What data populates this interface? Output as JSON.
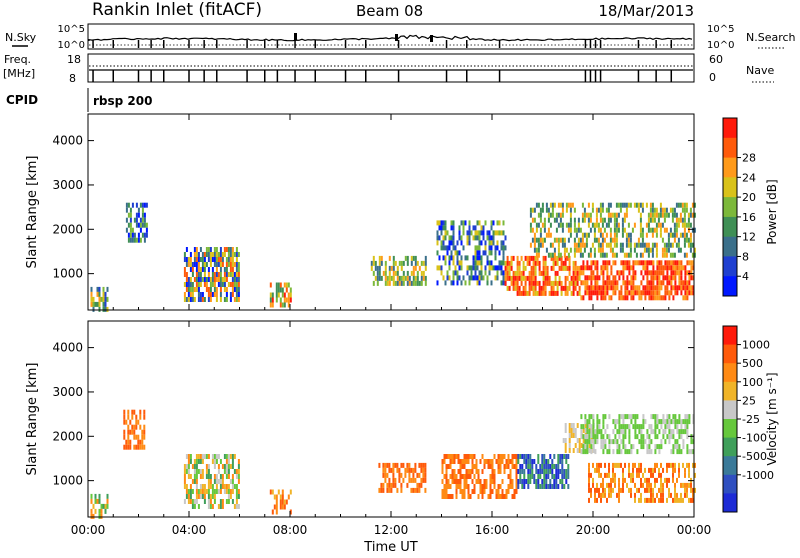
{
  "header": {
    "station": "Rankin Inlet (fitACF)",
    "beam": "Beam 08",
    "date": "18/Mar/2013"
  },
  "top_panels": {
    "nsky_label": "N.Sky",
    "nsky_ticks": [
      "10^5",
      "10^0"
    ],
    "nsearch_label": "N.Search",
    "nsearch_ticks": [
      "10^5",
      "10^0"
    ],
    "freq_label_1": "Freq.",
    "freq_label_2": "[MHz]",
    "freq_ticks": [
      "18",
      "8"
    ],
    "nave_label": "Nave",
    "nave_ticks": [
      "60",
      "0"
    ],
    "cpid_label": "CPID",
    "cpid_value": "rbsp 200"
  },
  "colors": {
    "power": [
      "#0018ff",
      "#1f3fd0",
      "#3a6f8a",
      "#3f8f55",
      "#7cb83a",
      "#d9c21a",
      "#ff9a1a",
      "#ff5a0a",
      "#ff1a0a"
    ],
    "velocity": [
      "#1d2bd6",
      "#2f4fc0",
      "#3a7a99",
      "#3f9f5a",
      "#66c83c",
      "#c8c8c8",
      "#f0b428",
      "#ff8a14",
      "#ff5a0a",
      "#ff1a0a"
    ]
  },
  "chart_data": [
    {
      "type": "heatmap",
      "name": "power",
      "ylabel": "Slant Range [km]",
      "xlabel": "",
      "xlim": [
        0,
        24
      ],
      "ylim": [
        180,
        4600
      ],
      "x_ticks": [
        "00:00",
        "04:00",
        "08:00",
        "12:00",
        "16:00",
        "20:00",
        "00:00"
      ],
      "y_ticks": [
        "1000",
        "2000",
        "3000",
        "4000"
      ],
      "colorbar": {
        "label": "Power [dB]",
        "ticks": [
          "4",
          "8",
          "12",
          "16",
          "20",
          "24",
          "28"
        ]
      },
      "blobs": [
        {
          "t0": 0.1,
          "t1": 0.8,
          "r0": 200,
          "r1": 700,
          "density": 0.7,
          "levels": [
            1,
            2,
            3,
            4,
            5,
            6
          ]
        },
        {
          "t0": 1.5,
          "t1": 2.3,
          "r0": 1800,
          "r1": 2600,
          "density": 0.6,
          "levels": [
            0,
            1,
            2,
            3,
            4
          ]
        },
        {
          "t0": 3.8,
          "t1": 6.0,
          "r0": 400,
          "r1": 1600,
          "density": 0.75,
          "levels": [
            0,
            1,
            2,
            3,
            4,
            5,
            6,
            7
          ]
        },
        {
          "t0": 7.2,
          "t1": 8.0,
          "r0": 300,
          "r1": 800,
          "density": 0.6,
          "levels": [
            3,
            4,
            5,
            6,
            7,
            8
          ]
        },
        {
          "t0": 11.2,
          "t1": 13.4,
          "r0": 800,
          "r1": 1400,
          "density": 0.6,
          "levels": [
            2,
            3,
            4,
            5,
            6
          ]
        },
        {
          "t0": 13.8,
          "t1": 16.5,
          "r0": 800,
          "r1": 2200,
          "density": 0.5,
          "levels": [
            0,
            1,
            2,
            3,
            4,
            5
          ]
        },
        {
          "t0": 16.5,
          "t1": 19.5,
          "r0": 600,
          "r1": 1400,
          "density": 0.7,
          "levels": [
            5,
            6,
            7,
            8
          ]
        },
        {
          "t0": 19.5,
          "t1": 24.0,
          "r0": 500,
          "r1": 1300,
          "density": 0.75,
          "levels": [
            6,
            7,
            8
          ]
        },
        {
          "t0": 17.5,
          "t1": 24.0,
          "r0": 1400,
          "r1": 2600,
          "density": 0.5,
          "levels": [
            2,
            3,
            4,
            5,
            6
          ]
        }
      ]
    },
    {
      "type": "heatmap",
      "name": "velocity",
      "ylabel": "Slant Range [km]",
      "xlabel": "Time UT",
      "xlim": [
        0,
        24
      ],
      "ylim": [
        180,
        4600
      ],
      "x_ticks": [
        "00:00",
        "04:00",
        "08:00",
        "12:00",
        "16:00",
        "20:00",
        "00:00"
      ],
      "y_ticks": [
        "1000",
        "2000",
        "3000",
        "4000"
      ],
      "colorbar": {
        "label": "Velocity [m s⁻¹]",
        "ticks": [
          "1000",
          "500",
          "100",
          "25",
          "-25",
          "-100",
          "-500",
          "-1000"
        ]
      },
      "blobs": [
        {
          "t0": 0.1,
          "t1": 0.8,
          "r0": 200,
          "r1": 700,
          "density": 0.6,
          "levels": [
            3,
            4,
            6,
            7
          ]
        },
        {
          "t0": 1.4,
          "t1": 2.2,
          "r0": 1700,
          "r1": 2600,
          "density": 0.6,
          "levels": [
            7,
            8
          ]
        },
        {
          "t0": 3.8,
          "t1": 6.0,
          "r0": 400,
          "r1": 1600,
          "density": 0.6,
          "levels": [
            3,
            4,
            5,
            6,
            7
          ]
        },
        {
          "t0": 7.2,
          "t1": 8.0,
          "r0": 300,
          "r1": 800,
          "density": 0.5,
          "levels": [
            6,
            7,
            8
          ]
        },
        {
          "t0": 11.5,
          "t1": 13.4,
          "r0": 800,
          "r1": 1400,
          "density": 0.5,
          "levels": [
            7,
            8
          ]
        },
        {
          "t0": 14.0,
          "t1": 17.0,
          "r0": 600,
          "r1": 1600,
          "density": 0.6,
          "levels": [
            7,
            8
          ]
        },
        {
          "t0": 17.0,
          "t1": 19.0,
          "r0": 900,
          "r1": 1600,
          "density": 0.7,
          "levels": [
            0,
            1,
            2,
            3
          ]
        },
        {
          "t0": 18.8,
          "t1": 20.0,
          "r0": 1700,
          "r1": 2300,
          "density": 0.6,
          "levels": [
            5,
            6
          ]
        },
        {
          "t0": 19.5,
          "t1": 24.0,
          "r0": 1600,
          "r1": 2500,
          "density": 0.55,
          "levels": [
            4,
            5
          ]
        },
        {
          "t0": 19.8,
          "t1": 24.0,
          "r0": 500,
          "r1": 1400,
          "density": 0.55,
          "levels": [
            6,
            7,
            8
          ]
        }
      ]
    }
  ]
}
